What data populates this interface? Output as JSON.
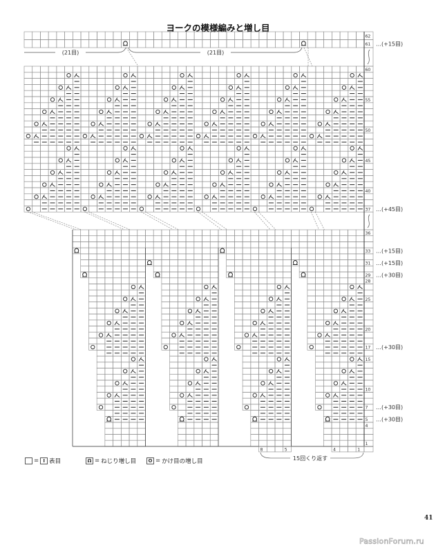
{
  "title": "ヨークの模様編みと増し目",
  "top_strip": {
    "row_labels": [
      "62",
      "61"
    ],
    "note": "…(+15目)",
    "bracket_labels": [
      "(21目)",
      "(21目)"
    ]
  },
  "upper_chart": {
    "row_labels": [
      "60",
      "55",
      "50",
      "45",
      "40",
      "37"
    ],
    "note": "…(+45目)"
  },
  "lower_chart": {
    "row_labels": [
      "36",
      "33",
      "31",
      "29",
      "28",
      "25",
      "20",
      "17",
      "15",
      "10",
      "7",
      "5",
      "4",
      "1"
    ],
    "notes": [
      {
        "row": "33",
        "text": "…(+15目)"
      },
      {
        "row": "31",
        "text": "…(+15目)"
      },
      {
        "row": "29",
        "text": "…(+30目)"
      },
      {
        "row": "17",
        "text": "…(+30目)"
      },
      {
        "row": "7",
        "text": "…(+30目)"
      },
      {
        "row": "5",
        "text": "…(+30目)"
      }
    ],
    "column_numbers": [
      "8",
      "5",
      "4",
      "1"
    ],
    "repeat_label": "15回くり返す"
  },
  "legend": [
    {
      "symbol": "I",
      "icon": "knit-stitch-icon",
      "text": "表目"
    },
    {
      "symbol": "Ω",
      "icon": "twisted-increase-icon",
      "text": "ねじり増し目"
    },
    {
      "symbol": "O",
      "icon": "yarn-over-increase-icon",
      "text": "かけ目の増し目"
    }
  ],
  "legend_equals": "=",
  "symbols": {
    "yarn_over": "yarn-over-icon",
    "decrease": "k2tog-icon",
    "purl": "purl-dash-icon",
    "twisted_increase": "twisted-increase-icon"
  },
  "page_number": "41",
  "watermark": "PassionForum.ru"
}
